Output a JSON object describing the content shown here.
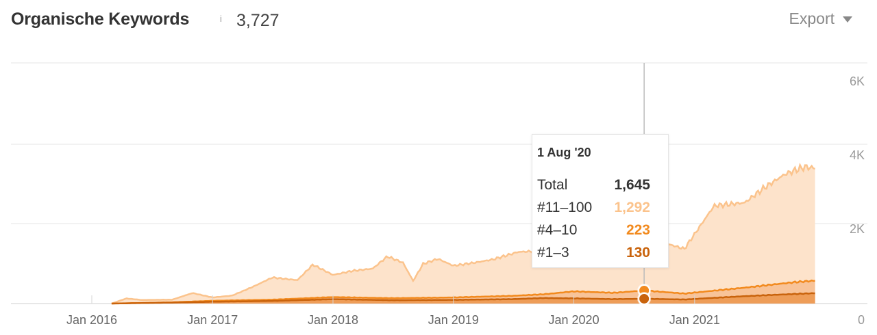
{
  "header": {
    "title": "Organische Keywords",
    "info_icon": "i",
    "count": "3,727",
    "export_label": "Export"
  },
  "colors": {
    "total": "#fbc38c",
    "r4_10": "#f28a1e",
    "r1_3": "#c9630c",
    "grid": "#e6e6e6",
    "crosshair": "#bbbbbb"
  },
  "chart_data": {
    "type": "area",
    "title": "Organische Keywords",
    "x_ticks": [
      "Jan 2016",
      "Jan 2017",
      "Jan 2018",
      "Jan 2019",
      "Jan 2020",
      "Jan 2021"
    ],
    "y_ticks": [
      "0",
      "2K",
      "4K",
      "6K"
    ],
    "ylim": [
      0,
      6000
    ],
    "grid": true,
    "stacked": true,
    "series": [
      {
        "name": "#11–100",
        "color": "#fbc38c",
        "points": [
          [
            "2016-03-01",
            0
          ],
          [
            "2016-04-15",
            130
          ],
          [
            "2016-06-01",
            80
          ],
          [
            "2016-09-01",
            70
          ],
          [
            "2016-11-01",
            230
          ],
          [
            "2017-01-01",
            90
          ],
          [
            "2017-03-01",
            130
          ],
          [
            "2017-05-01",
            350
          ],
          [
            "2017-07-01",
            600
          ],
          [
            "2017-09-15",
            500
          ],
          [
            "2017-11-01",
            900
          ],
          [
            "2018-01-01",
            600
          ],
          [
            "2018-03-01",
            720
          ],
          [
            "2018-05-01",
            790
          ],
          [
            "2018-06-15",
            1130
          ],
          [
            "2018-08-01",
            960
          ],
          [
            "2018-09-01",
            460
          ],
          [
            "2018-10-01",
            920
          ],
          [
            "2018-11-15",
            1050
          ],
          [
            "2019-01-01",
            860
          ],
          [
            "2019-03-01",
            920
          ],
          [
            "2019-05-01",
            1000
          ],
          [
            "2019-07-15",
            1180
          ],
          [
            "2019-10-15",
            1180
          ],
          [
            "2020-01-01",
            1080
          ],
          [
            "2020-03-01",
            1050
          ],
          [
            "2020-05-01",
            1100
          ],
          [
            "2020-08-01",
            1292
          ],
          [
            "2020-10-01",
            1330
          ],
          [
            "2020-12-01",
            1210
          ],
          [
            "2021-03-01",
            2300
          ],
          [
            "2021-06-01",
            2300
          ],
          [
            "2021-08-01",
            2650
          ],
          [
            "2021-10-01",
            2950
          ],
          [
            "2021-12-01",
            3100
          ],
          [
            "2022-01-01",
            3050
          ]
        ]
      },
      {
        "name": "#4–10",
        "color": "#f28a1e",
        "points": [
          [
            "2016-03-01",
            0
          ],
          [
            "2016-09-01",
            10
          ],
          [
            "2017-01-01",
            25
          ],
          [
            "2017-07-01",
            35
          ],
          [
            "2018-01-01",
            55
          ],
          [
            "2018-07-01",
            55
          ],
          [
            "2019-01-01",
            65
          ],
          [
            "2019-07-01",
            90
          ],
          [
            "2019-10-01",
            100
          ],
          [
            "2020-01-01",
            190
          ],
          [
            "2020-05-01",
            170
          ],
          [
            "2020-08-01",
            223
          ],
          [
            "2020-12-01",
            160
          ],
          [
            "2021-06-01",
            230
          ],
          [
            "2021-11-01",
            320
          ],
          [
            "2022-01-01",
            340
          ]
        ]
      },
      {
        "name": "#1–3",
        "color": "#c9630c",
        "points": [
          [
            "2016-03-01",
            0
          ],
          [
            "2016-09-01",
            25
          ],
          [
            "2017-01-01",
            50
          ],
          [
            "2017-07-01",
            70
          ],
          [
            "2018-01-01",
            120
          ],
          [
            "2018-07-01",
            90
          ],
          [
            "2019-01-01",
            100
          ],
          [
            "2019-07-01",
            120
          ],
          [
            "2019-10-01",
            150
          ],
          [
            "2020-01-01",
            140
          ],
          [
            "2020-05-01",
            120
          ],
          [
            "2020-08-01",
            130
          ],
          [
            "2020-12-01",
            110
          ],
          [
            "2021-06-01",
            200
          ],
          [
            "2021-11-01",
            260
          ],
          [
            "2022-01-01",
            280
          ]
        ]
      }
    ]
  },
  "tooltip": {
    "date": "1 Aug '20",
    "rows": [
      {
        "label": "Total",
        "value": "1,645",
        "color": "#333333"
      },
      {
        "label": "#11–100",
        "value": "1,292",
        "color": "#fbc38c"
      },
      {
        "label": "#4–10",
        "value": "223",
        "color": "#f28a1e"
      },
      {
        "label": "#1–3",
        "value": "130",
        "color": "#c9630c"
      }
    ]
  }
}
